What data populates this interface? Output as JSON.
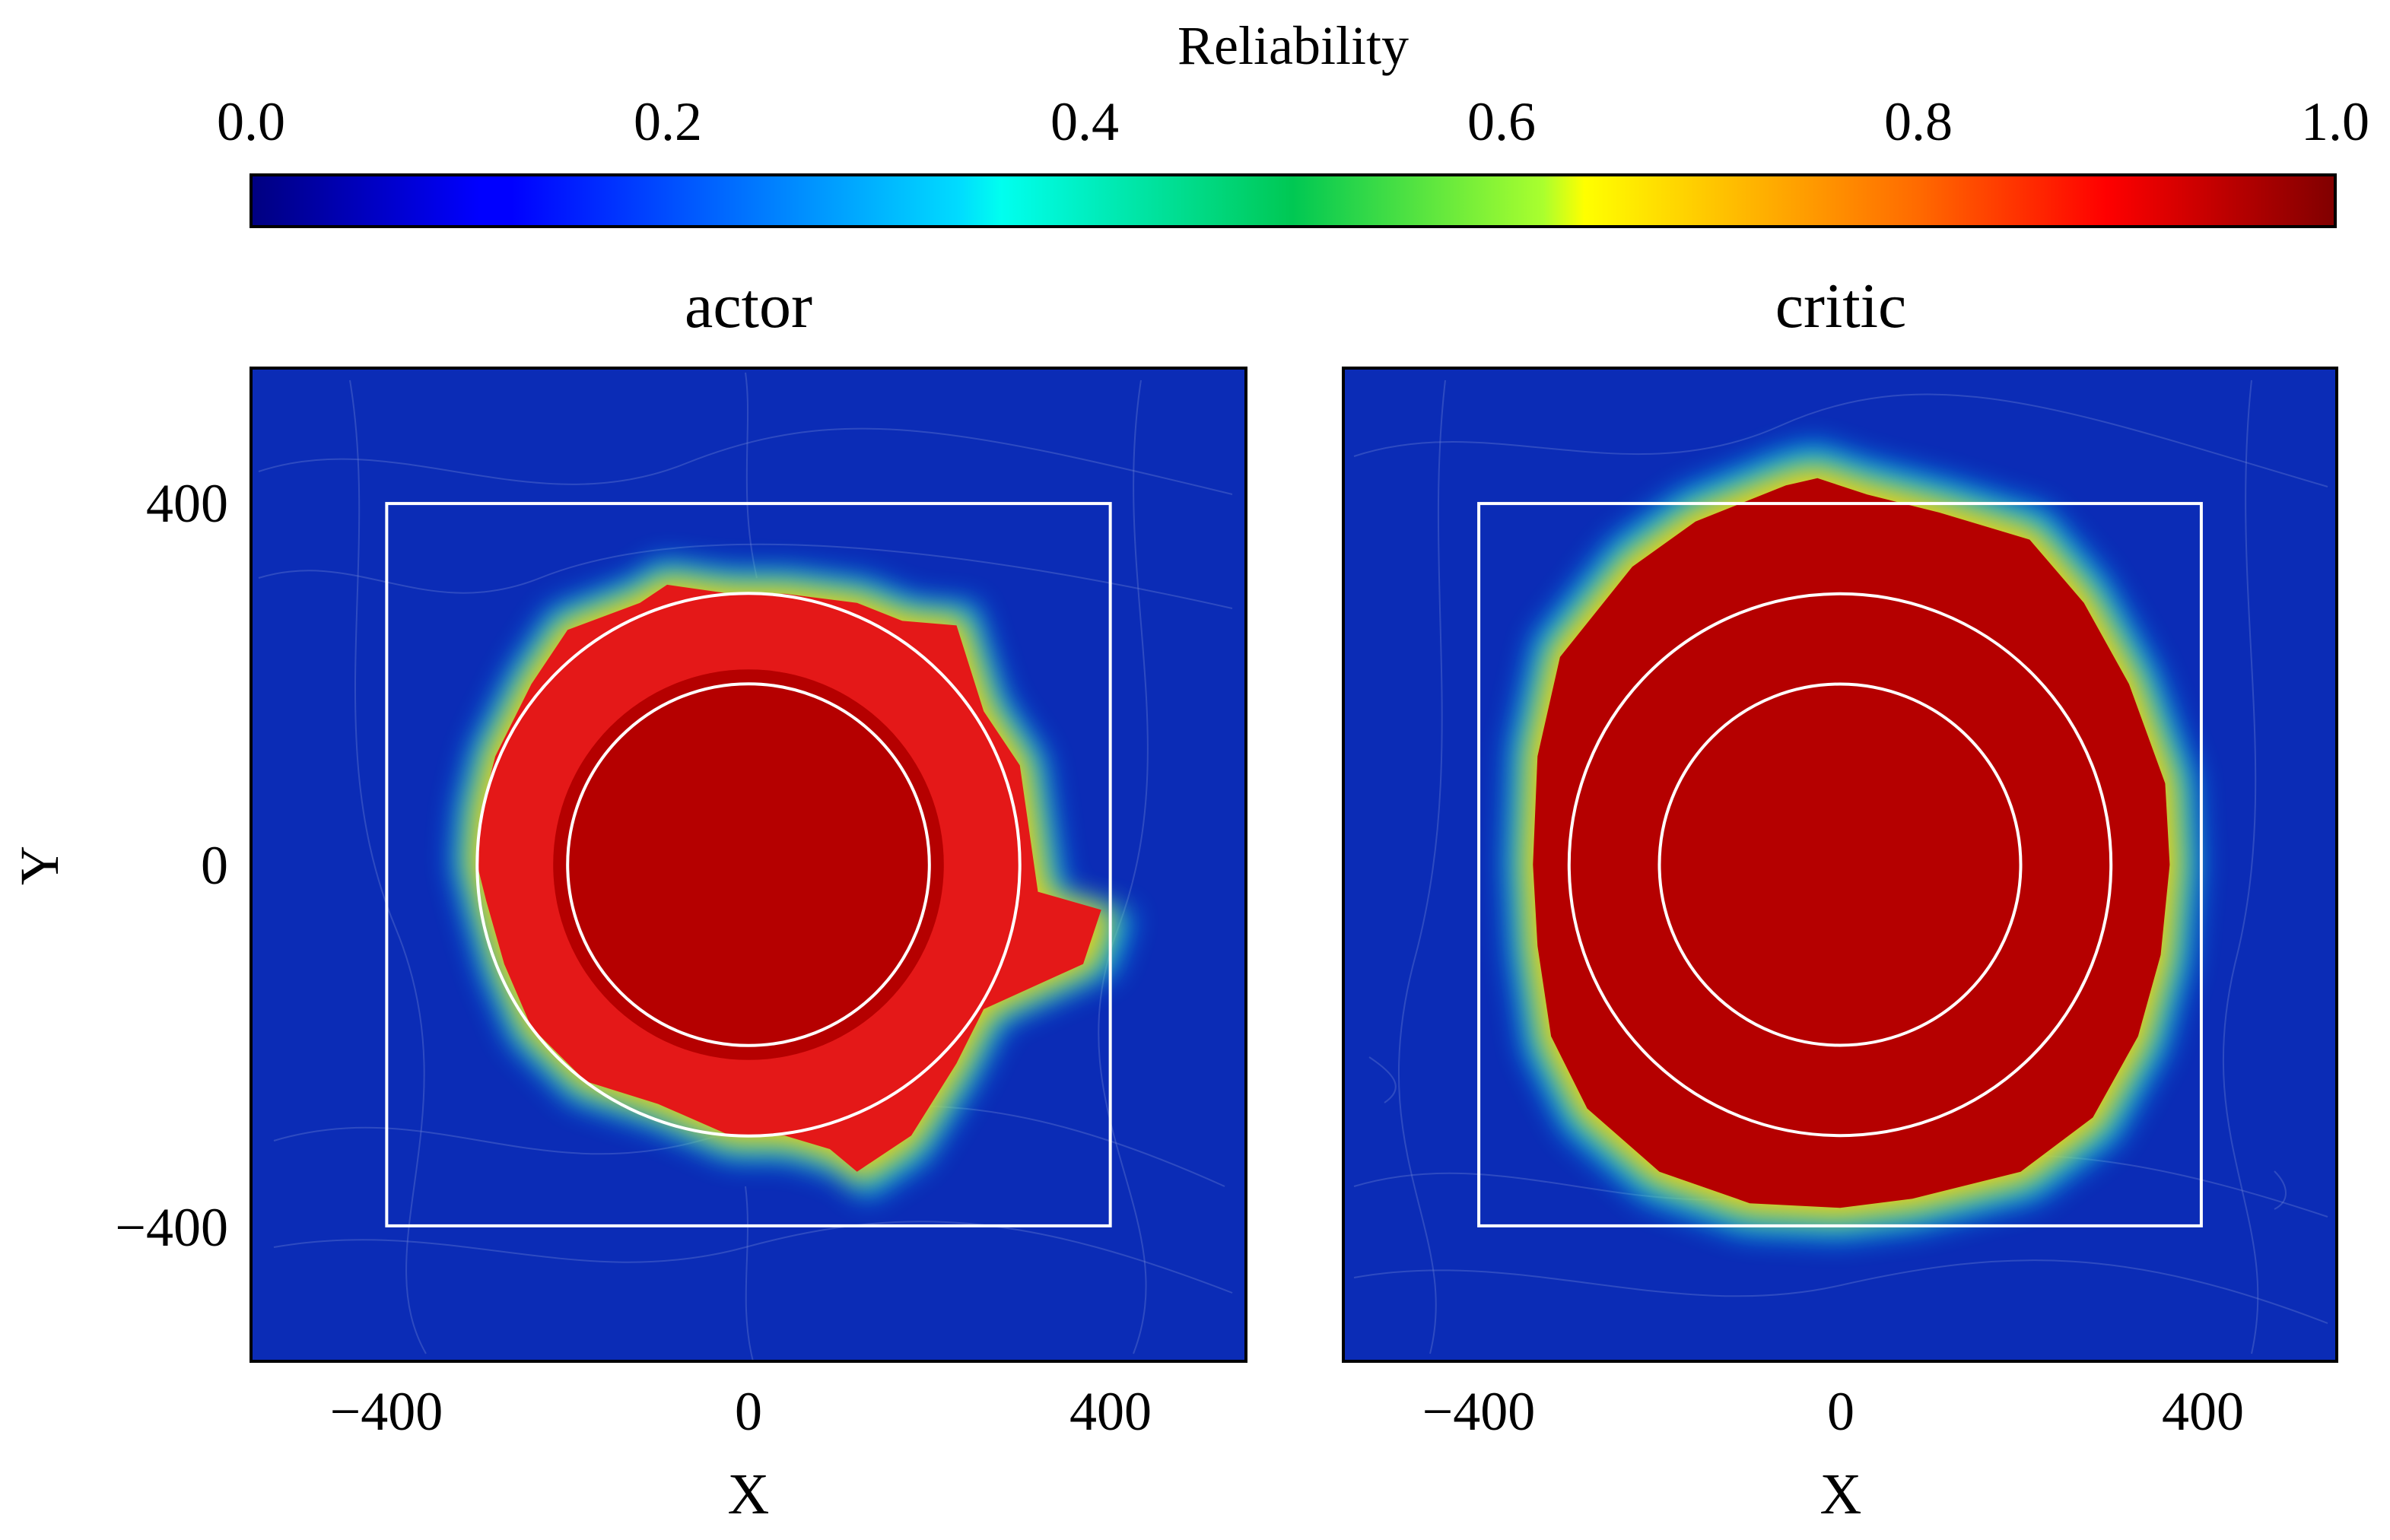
{
  "colors": {
    "low": "#00008f",
    "high": "#b50000",
    "background": "#0b2cb6",
    "guide": "#ffffff"
  },
  "colorbar": {
    "label": "Reliability",
    "ticks": [
      "0.0",
      "0.2",
      "0.4",
      "0.6",
      "0.8",
      "1.0"
    ],
    "range": [
      0.0,
      1.0
    ]
  },
  "chart_data": [
    {
      "type": "heatmap",
      "title": "actor",
      "xlabel": "X",
      "ylabel": "Y",
      "xlim": [
        -550,
        550
      ],
      "ylim": [
        -550,
        550
      ],
      "xticks": [
        "−400",
        "0",
        "400"
      ],
      "yticks": [
        "400",
        "0",
        "−400"
      ],
      "square_half_width": 400,
      "circle_radii": [
        200,
        300
      ],
      "high_reliability_region_outline": [
        [
          -300,
          0
        ],
        [
          -295,
          60
        ],
        [
          -280,
          120
        ],
        [
          -240,
          200
        ],
        [
          -200,
          260
        ],
        [
          -120,
          290
        ],
        [
          -90,
          310
        ],
        [
          -20,
          300
        ],
        [
          40,
          300
        ],
        [
          120,
          290
        ],
        [
          170,
          270
        ],
        [
          230,
          265
        ],
        [
          260,
          170
        ],
        [
          300,
          110
        ],
        [
          310,
          40
        ],
        [
          320,
          -30
        ],
        [
          390,
          -50
        ],
        [
          370,
          -110
        ],
        [
          260,
          -160
        ],
        [
          230,
          -220
        ],
        [
          180,
          -300
        ],
        [
          120,
          -340
        ],
        [
          90,
          -315
        ],
        [
          40,
          -300
        ],
        [
          -20,
          -300
        ],
        [
          -100,
          -265
        ],
        [
          -180,
          -240
        ],
        [
          -240,
          -180
        ],
        [
          -270,
          -110
        ],
        [
          -290,
          -40
        ]
      ]
    },
    {
      "type": "heatmap",
      "title": "critic",
      "xlabel": "X",
      "ylabel": "",
      "xlim": [
        -550,
        550
      ],
      "ylim": [
        -550,
        550
      ],
      "xticks": [
        "−400",
        "0",
        "400"
      ],
      "yticks": [],
      "square_half_width": 400,
      "circle_radii": [
        200,
        300
      ],
      "high_reliability_region_outline": [
        [
          -340,
          0
        ],
        [
          -335,
          120
        ],
        [
          -310,
          230
        ],
        [
          -230,
          330
        ],
        [
          -160,
          380
        ],
        [
          -60,
          420
        ],
        [
          -25,
          428
        ],
        [
          30,
          410
        ],
        [
          110,
          390
        ],
        [
          210,
          360
        ],
        [
          270,
          290
        ],
        [
          320,
          200
        ],
        [
          360,
          90
        ],
        [
          365,
          0
        ],
        [
          355,
          -100
        ],
        [
          330,
          -190
        ],
        [
          280,
          -280
        ],
        [
          200,
          -340
        ],
        [
          80,
          -370
        ],
        [
          0,
          -380
        ],
        [
          -100,
          -375
        ],
        [
          -200,
          -340
        ],
        [
          -280,
          -270
        ],
        [
          -320,
          -190
        ],
        [
          -335,
          -90
        ]
      ]
    }
  ]
}
